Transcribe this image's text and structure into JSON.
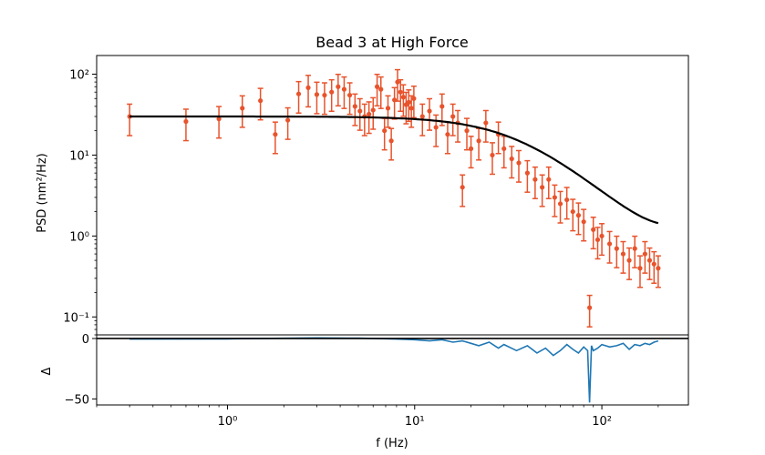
{
  "chart_data": [
    {
      "type": "scatter",
      "title": "Bead 3 at High Force",
      "xlabel": "",
      "ylabel": "PSD (nm²/Hz)",
      "xscale": "log",
      "yscale": "log",
      "xlim": [
        0.2,
        290
      ],
      "ylim": [
        0.06,
        170
      ],
      "xticks": [
        {
          "value": 1,
          "label": "10⁰"
        },
        {
          "value": 10,
          "label": "10¹"
        },
        {
          "value": 100,
          "label": "10²"
        }
      ],
      "yticks": [
        {
          "value": 0.1,
          "label": "10⁻¹"
        },
        {
          "value": 1,
          "label": "10⁰"
        },
        {
          "value": 10,
          "label": "10¹"
        },
        {
          "value": 100,
          "label": "10²"
        }
      ],
      "colors": {
        "data": "#e8532c",
        "fit": "#000000"
      },
      "series": [
        {
          "kind": "errorbar",
          "x": [
            0.3,
            0.6,
            0.9,
            1.2,
            1.5,
            1.8,
            2.1,
            2.4,
            2.7,
            3.0,
            3.3,
            3.6,
            3.9,
            4.2,
            4.5,
            4.8,
            5.1,
            5.4,
            5.7,
            6.0,
            6.3,
            6.6,
            6.9,
            7.2,
            7.5,
            7.8,
            8.1,
            8.4,
            8.7,
            9.0,
            9.3,
            9.6,
            9.9,
            11,
            12,
            13,
            14,
            15,
            16,
            17,
            18,
            19,
            20,
            22,
            24,
            26,
            28,
            30,
            33,
            36,
            40,
            44,
            48,
            52,
            56,
            60,
            65,
            70,
            75,
            80,
            86,
            90,
            95,
            100,
            110,
            120,
            130,
            140,
            150,
            160,
            170,
            180,
            190,
            200
          ],
          "y": [
            30,
            26,
            28,
            38,
            47,
            18,
            27,
            57,
            68,
            56,
            55,
            60,
            70,
            65,
            55,
            40,
            35,
            30,
            32,
            36,
            70,
            65,
            20,
            38,
            15,
            48,
            80,
            60,
            52,
            42,
            45,
            38,
            50,
            30,
            35,
            22,
            40,
            18,
            30,
            25,
            4,
            20,
            12,
            15,
            25,
            10,
            18,
            12,
            9,
            8,
            6,
            5,
            4,
            5,
            3,
            2.5,
            2.8,
            2,
            1.8,
            1.5,
            0.13,
            1.2,
            0.9,
            1.0,
            0.8,
            0.7,
            0.6,
            0.5,
            0.7,
            0.4,
            0.6,
            0.5,
            0.45,
            0.4
          ],
          "rel_err": 0.42
        },
        {
          "kind": "line",
          "model": "lorentzian",
          "plateau": 30,
          "corner_hz": 36,
          "floor": 0.5
        }
      ]
    },
    {
      "type": "line",
      "title": "",
      "xlabel": "f (Hz)",
      "ylabel": "Δ",
      "xscale": "log",
      "xlim": [
        0.2,
        290
      ],
      "ylim": [
        -55,
        3
      ],
      "xticks": [
        {
          "value": 1,
          "label": "10⁰"
        },
        {
          "value": 10,
          "label": "10¹"
        },
        {
          "value": 100,
          "label": "10²"
        }
      ],
      "yticks": [
        {
          "value": 0,
          "label": "0"
        },
        {
          "value": -50,
          "label": "−50"
        }
      ],
      "colors": {
        "residual": "#1f77b4",
        "zero": "#000000"
      },
      "series": [
        {
          "name": "",
          "x": [
            0.3,
            1,
            2,
            3,
            5,
            8,
            10,
            12,
            14,
            16,
            18,
            20,
            22,
            25,
            28,
            30,
            35,
            40,
            45,
            50,
            55,
            60,
            65,
            70,
            75,
            80,
            84,
            86,
            88,
            90,
            95,
            100,
            110,
            120,
            130,
            140,
            150,
            160,
            170,
            180,
            190,
            200
          ],
          "y": [
            -0.5,
            -0.3,
            0.2,
            0.5,
            0.3,
            -0.5,
            -1,
            -2,
            -1,
            -3,
            -2,
            -4,
            -6,
            -3,
            -8,
            -5,
            -10,
            -6,
            -12,
            -8,
            -14,
            -10,
            -5,
            -9,
            -12,
            -7,
            -10,
            -53,
            -6,
            -10,
            -8,
            -5,
            -7,
            -6,
            -4,
            -9,
            -5,
            -6,
            -4,
            -5,
            -3,
            -2
          ]
        },
        {
          "name": "",
          "x": [
            0.2,
            290
          ],
          "y": [
            0,
            0
          ]
        }
      ]
    }
  ]
}
